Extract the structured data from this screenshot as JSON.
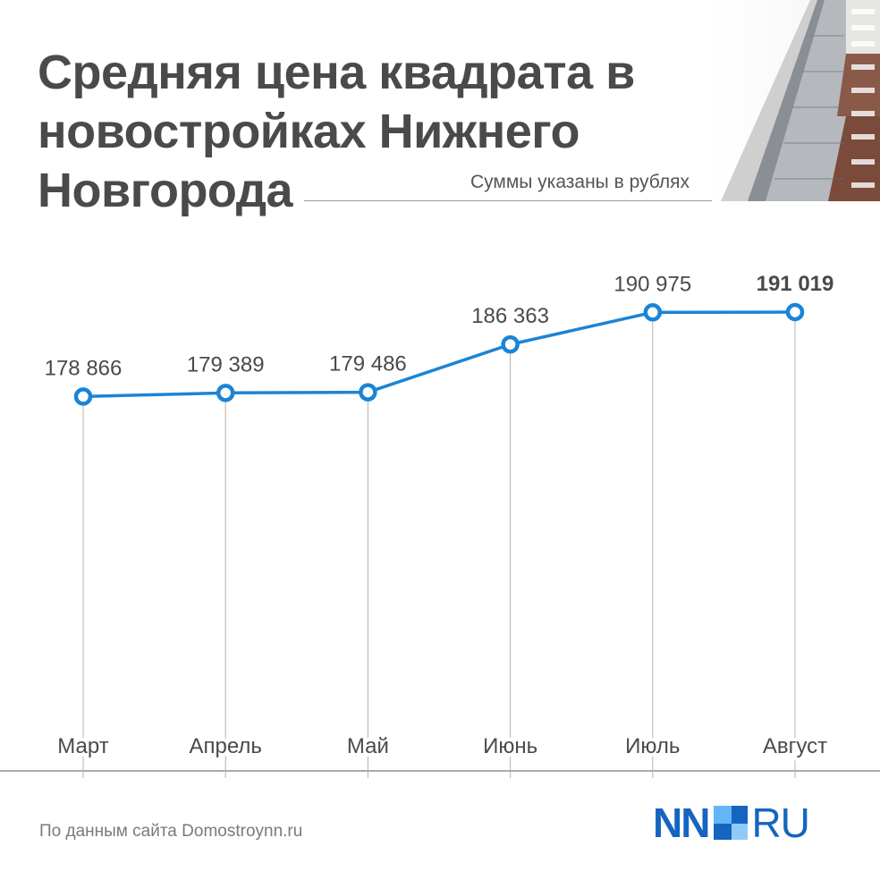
{
  "header": {
    "title": "Средняя цена квадрата в новостройках Нижнего Новгорода",
    "subtitle": "Суммы указаны в рублях"
  },
  "footer": {
    "source": "По данным сайта Domostroynn.ru",
    "logo_left": "NN",
    "logo_right": "RU"
  },
  "colors": {
    "line": "#1a84d6",
    "text": "#4a4a4a",
    "gridline": "#b0b0b0",
    "logo": "#1565c0"
  },
  "chart_data": {
    "type": "line",
    "title": "Средняя цена квадрата в новостройках Нижнего Новгорода",
    "subtitle": "Суммы указаны в рублях",
    "categories": [
      "Март",
      "Апрель",
      "Май",
      "Июнь",
      "Июль",
      "Август"
    ],
    "values": [
      178866,
      179389,
      179486,
      186363,
      190975,
      191019
    ],
    "value_labels": [
      "178 866",
      "179 389",
      "179 486",
      "186 363",
      "190 975",
      "191 019"
    ],
    "highlighted_index": 5,
    "ylim": [
      125000,
      195000
    ],
    "grid": false,
    "legend": "none"
  }
}
